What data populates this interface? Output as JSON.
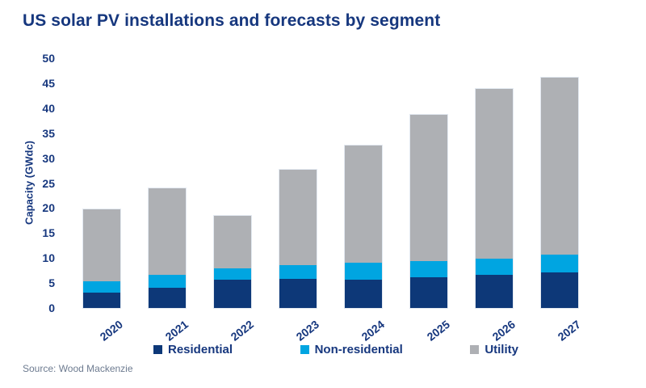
{
  "title": "US solar PV installations and forecasts by segment",
  "source_note": "Source: Wood Mackenzie",
  "colors": {
    "residential": "#0d3878",
    "non_residential": "#00a5e1",
    "utility": "#aeb0b4",
    "heading_text": "#16377e",
    "axis_text": "#16377e",
    "source_text": "#6d7b90",
    "background": "#ffffff"
  },
  "chart_data": {
    "type": "bar",
    "stacked": true,
    "title": "US solar PV installations and forecasts by segment",
    "categories": [
      "2020",
      "2021",
      "2022",
      "2023",
      "2024",
      "2025",
      "2026",
      "2027"
    ],
    "series": [
      {
        "name": "Residential",
        "color": "#0d3878",
        "values": [
          3.1,
          4.0,
          5.6,
          5.9,
          5.6,
          6.1,
          6.7,
          7.1
        ]
      },
      {
        "name": "Non-residential",
        "color": "#00a5e1",
        "values": [
          2.3,
          2.6,
          2.3,
          2.7,
          3.5,
          3.3,
          3.2,
          3.6
        ]
      },
      {
        "name": "Utility",
        "color": "#aeb0b4",
        "values": [
          14.3,
          17.4,
          10.6,
          19.1,
          23.4,
          29.2,
          33.9,
          35.5
        ]
      }
    ],
    "totals": [
      19.7,
      24.0,
      18.5,
      27.7,
      32.5,
      38.6,
      43.8,
      46.2
    ],
    "xlabel": "",
    "ylabel": "Capacity (GWdc)",
    "ylim": [
      0,
      50
    ],
    "ytick_step": 5,
    "yticks": [
      0,
      5,
      10,
      15,
      20,
      25,
      30,
      35,
      40,
      45,
      50
    ],
    "grid": false,
    "x_label_rotation_deg": -38,
    "legend_position": "bottom"
  }
}
